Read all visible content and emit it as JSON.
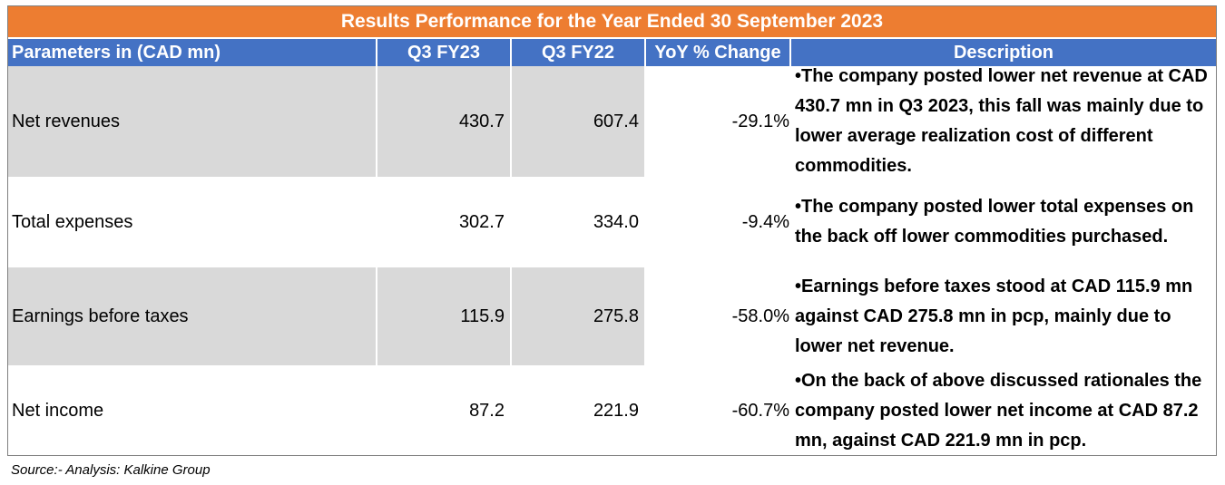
{
  "title": "Results Performance for the Year Ended 30 September 2023",
  "headers": {
    "param": "Parameters in (CAD mn)",
    "q3fy23": "Q3 FY23",
    "q3fy22": "Q3 FY22",
    "yoy": "YoY % Change",
    "desc": "Description"
  },
  "rows": [
    {
      "label": "Net revenues",
      "q3fy23": "430.7",
      "q3fy22": "607.4",
      "yoy": "-29.1%",
      "desc": "•The company posted lower net revenue at CAD 430.7 mn in Q3 2023, this fall was  mainly due to lower average realization cost of different commodities."
    },
    {
      "label": "Total expenses",
      "q3fy23": "302.7",
      "q3fy22": "334.0",
      "yoy": "-9.4%",
      "desc": "•The company posted lower total expenses on the back off lower commodities purchased."
    },
    {
      "label": "Earnings before taxes",
      "q3fy23": "115.9",
      "q3fy22": "275.8",
      "yoy": "-58.0%",
      "desc": "•Earnings before taxes stood at CAD 115.9 mn against CAD 275.8 mn in pcp, mainly due to lower net revenue."
    },
    {
      "label": "Net income",
      "q3fy23": "87.2",
      "q3fy22": "221.9",
      "yoy": "-60.7%",
      "desc": "•On the back of above discussed rationales the company posted lower net income at CAD 87.2 mn, against CAD 221.9 mn in pcp."
    }
  ],
  "source": "Source:- Analysis: Kalkine Group"
}
